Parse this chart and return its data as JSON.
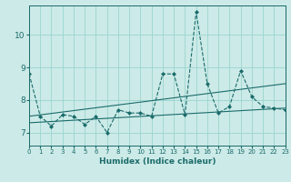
{
  "xlabel": "Humidex (Indice chaleur)",
  "bg_color": "#cceae7",
  "grid_color": "#99d5d0",
  "line_color": "#1a6b6b",
  "xlim": [
    0,
    23
  ],
  "ylim": [
    6.6,
    10.9
  ],
  "yticks": [
    7,
    8,
    9,
    10
  ],
  "xticks": [
    0,
    1,
    2,
    3,
    4,
    5,
    6,
    7,
    8,
    9,
    10,
    11,
    12,
    13,
    14,
    15,
    16,
    17,
    18,
    19,
    20,
    21,
    22,
    23
  ],
  "series": [
    {
      "x": [
        0,
        1,
        2,
        3,
        4,
        5,
        6,
        7,
        8,
        9,
        10,
        11,
        12,
        13,
        14,
        15,
        16,
        17,
        18,
        19,
        20,
        21,
        22,
        23
      ],
      "y": [
        8.8,
        7.5,
        7.2,
        7.55,
        7.5,
        7.25,
        7.5,
        7.0,
        7.7,
        7.6,
        7.6,
        7.5,
        8.8,
        8.8,
        7.55,
        10.7,
        8.5,
        7.6,
        7.8,
        8.9,
        8.1,
        7.8,
        7.75,
        7.7
      ],
      "linestyle": "dashed",
      "no_markers": false
    },
    {
      "x": [
        0,
        23
      ],
      "y": [
        7.3,
        7.75
      ],
      "linestyle": "solid",
      "no_markers": true
    },
    {
      "x": [
        0,
        23
      ],
      "y": [
        7.5,
        8.5
      ],
      "linestyle": "solid",
      "no_markers": true
    }
  ]
}
